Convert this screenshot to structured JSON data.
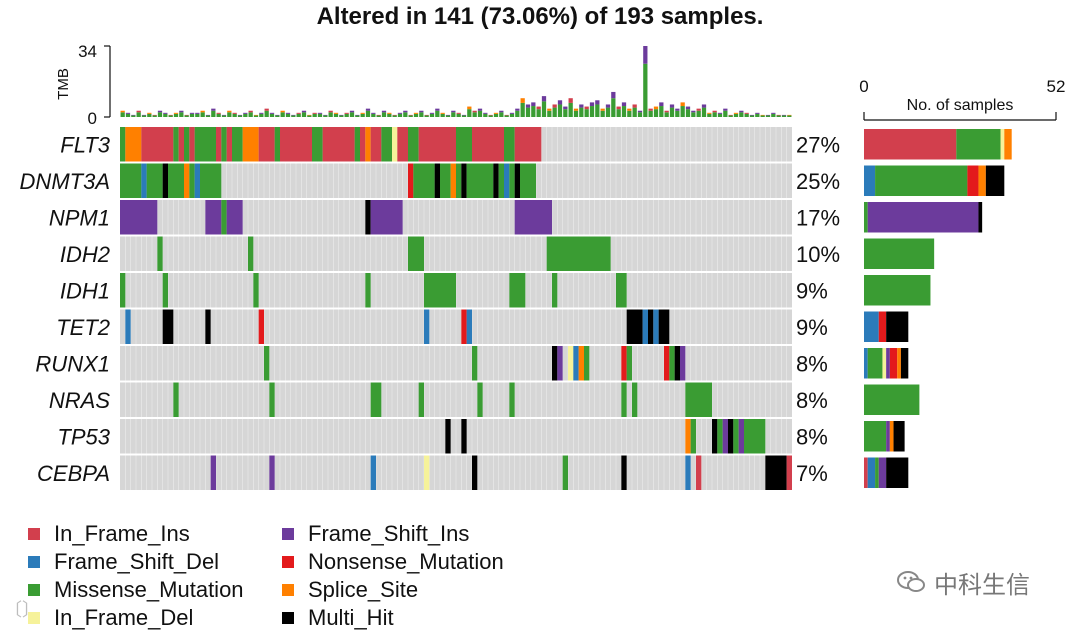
{
  "title": "Altered in 141 (73.06%) of 193 samples.",
  "tmb_axis": {
    "label": "TMB",
    "max": 34,
    "min": 0,
    "ticks": [
      "34",
      "0"
    ]
  },
  "right_axis": {
    "label": "No. of samples",
    "min": 0,
    "max": 52,
    "ticks": [
      "0",
      "52"
    ]
  },
  "colors": {
    "In_Frame_Ins": "#d23f4d",
    "Frame_Shift_Del": "#2b7bba",
    "Missense_Mutation": "#3a9c33",
    "In_Frame_Del": "#f6f29a",
    "Frame_Shift_Ins": "#6c3b9c",
    "Nonsense_Mutation": "#e31a1c",
    "Splice_Site": "#ff8000",
    "Multi_Hit": "#000000",
    "background": "#d6d6d6"
  },
  "legend": [
    {
      "key": "In_Frame_Ins",
      "label": "In_Frame_Ins"
    },
    {
      "key": "Frame_Shift_Del",
      "label": "Frame_Shift_Del"
    },
    {
      "key": "Missense_Mutation",
      "label": "Missense_Mutation"
    },
    {
      "key": "In_Frame_Del",
      "label": "In_Frame_Del"
    },
    {
      "key": "Frame_Shift_Ins",
      "label": "Frame_Shift_Ins"
    },
    {
      "key": "Nonsense_Mutation",
      "label": "Nonsense_Mutation"
    },
    {
      "key": "Splice_Site",
      "label": "Splice_Site"
    },
    {
      "key": "Multi_Hit",
      "label": "Multi_Hit"
    }
  ],
  "chart_data": {
    "type": "heatmap",
    "title": "Altered in 141 (73.06%) of 193 samples.",
    "samples_total": 193,
    "samples_altered": 141,
    "genes": [
      {
        "name": "FLT3",
        "percent": "27%",
        "counts": {
          "In_Frame_Ins": 25,
          "Missense_Mutation": 12,
          "In_Frame_Del": 1,
          "Splice_Site": 2
        },
        "blocks": [
          [
            0,
            1,
            "Missense_Mutation"
          ],
          [
            1,
            4,
            "Splice_Site"
          ],
          [
            4,
            10,
            "In_Frame_Ins"
          ],
          [
            10,
            11,
            "Missense_Mutation"
          ],
          [
            11,
            12,
            "In_Frame_Ins"
          ],
          [
            12,
            13,
            "Missense_Mutation"
          ],
          [
            13,
            14,
            "In_Frame_Ins"
          ],
          [
            14,
            18,
            "Missense_Mutation"
          ],
          [
            18,
            19,
            "In_Frame_Ins"
          ],
          [
            19,
            20,
            "Missense_Mutation"
          ],
          [
            20,
            21,
            "In_Frame_Ins"
          ],
          [
            21,
            23,
            "Missense_Mutation"
          ],
          [
            23,
            26,
            "Splice_Site"
          ],
          [
            26,
            29,
            "In_Frame_Ins"
          ],
          [
            29,
            30,
            "Missense_Mutation"
          ],
          [
            30,
            36,
            "In_Frame_Ins"
          ],
          [
            36,
            38,
            "Missense_Mutation"
          ],
          [
            38,
            44,
            "In_Frame_Ins"
          ],
          [
            44,
            45,
            "Missense_Mutation"
          ],
          [
            45,
            46,
            "In_Frame_Ins"
          ],
          [
            46,
            47,
            "Splice_Site"
          ],
          [
            47,
            49,
            "In_Frame_Ins"
          ],
          [
            49,
            51,
            "Missense_Mutation"
          ],
          [
            51,
            52,
            "In_Frame_Del"
          ],
          [
            52,
            54,
            "In_Frame_Ins"
          ],
          [
            54,
            56,
            "Missense_Mutation"
          ],
          [
            56,
            63,
            "In_Frame_Ins"
          ],
          [
            63,
            66,
            "Missense_Mutation"
          ],
          [
            66,
            72,
            "In_Frame_Ins"
          ],
          [
            72,
            74,
            "Missense_Mutation"
          ],
          [
            74,
            79,
            "In_Frame_Ins"
          ]
        ]
      },
      {
        "name": "DNMT3A",
        "percent": "25%",
        "counts": {
          "Frame_Shift_Del": 3,
          "Missense_Mutation": 25,
          "Nonsense_Mutation": 3,
          "Splice_Site": 2,
          "Multi_Hit": 5
        },
        "blocks": [
          [
            0,
            4,
            "Missense_Mutation"
          ],
          [
            4,
            5,
            "Frame_Shift_Del"
          ],
          [
            5,
            8,
            "Missense_Mutation"
          ],
          [
            8,
            9,
            "Multi_Hit"
          ],
          [
            9,
            12,
            "Missense_Mutation"
          ],
          [
            12,
            13,
            "Splice_Site"
          ],
          [
            13,
            14,
            "Missense_Mutation"
          ],
          [
            14,
            15,
            "Frame_Shift_Del"
          ],
          [
            15,
            19,
            "Missense_Mutation"
          ],
          [
            54,
            55,
            "Nonsense_Mutation"
          ],
          [
            55,
            59,
            "Missense_Mutation"
          ],
          [
            59,
            60,
            "Multi_Hit"
          ],
          [
            60,
            62,
            "Missense_Mutation"
          ],
          [
            62,
            63,
            "Splice_Site"
          ],
          [
            63,
            64,
            "Missense_Mutation"
          ],
          [
            64,
            65,
            "Multi_Hit"
          ],
          [
            65,
            70,
            "Missense_Mutation"
          ],
          [
            70,
            71,
            "Multi_Hit"
          ],
          [
            71,
            72,
            "Missense_Mutation"
          ],
          [
            72,
            73,
            "Frame_Shift_Del"
          ],
          [
            73,
            74,
            "Missense_Mutation"
          ],
          [
            74,
            75,
            "Multi_Hit"
          ],
          [
            75,
            78,
            "Missense_Mutation"
          ]
        ]
      },
      {
        "name": "NPM1",
        "percent": "17%",
        "counts": {
          "Missense_Mutation": 1,
          "Frame_Shift_Ins": 30,
          "Multi_Hit": 1
        },
        "blocks": [
          [
            0,
            7,
            "Frame_Shift_Ins"
          ],
          [
            16,
            19,
            "Frame_Shift_Ins"
          ],
          [
            19,
            20,
            "Missense_Mutation"
          ],
          [
            20,
            23,
            "Frame_Shift_Ins"
          ],
          [
            46,
            47,
            "Multi_Hit"
          ],
          [
            47,
            53,
            "Frame_Shift_Ins"
          ],
          [
            74,
            81,
            "Frame_Shift_Ins"
          ]
        ]
      },
      {
        "name": "IDH2",
        "percent": "10%",
        "counts": {
          "Missense_Mutation": 19
        },
        "blocks": [
          [
            7,
            8,
            "Missense_Mutation"
          ],
          [
            24,
            25,
            "Missense_Mutation"
          ],
          [
            54,
            57,
            "Missense_Mutation"
          ],
          [
            80,
            92,
            "Missense_Mutation"
          ]
        ]
      },
      {
        "name": "IDH1",
        "percent": "9%",
        "counts": {
          "Missense_Mutation": 18
        },
        "blocks": [
          [
            0,
            1,
            "Missense_Mutation"
          ],
          [
            8,
            9,
            "Missense_Mutation"
          ],
          [
            25,
            26,
            "Missense_Mutation"
          ],
          [
            46,
            47,
            "Missense_Mutation"
          ],
          [
            57,
            63,
            "Missense_Mutation"
          ],
          [
            73,
            76,
            "Missense_Mutation"
          ],
          [
            81,
            82,
            "Missense_Mutation"
          ],
          [
            93,
            95,
            "Missense_Mutation"
          ]
        ]
      },
      {
        "name": "TET2",
        "percent": "9%",
        "counts": {
          "Frame_Shift_Del": 4,
          "Nonsense_Mutation": 2,
          "Multi_Hit": 6
        },
        "blocks": [
          [
            1,
            2,
            "Frame_Shift_Del"
          ],
          [
            8,
            10,
            "Multi_Hit"
          ],
          [
            16,
            17,
            "Multi_Hit"
          ],
          [
            26,
            27,
            "Nonsense_Mutation"
          ],
          [
            57,
            58,
            "Frame_Shift_Del"
          ],
          [
            64,
            65,
            "Nonsense_Mutation"
          ],
          [
            65,
            66,
            "Frame_Shift_Del"
          ],
          [
            95,
            98,
            "Multi_Hit"
          ],
          [
            98,
            99,
            "Frame_Shift_Del"
          ],
          [
            99,
            100,
            "Multi_Hit"
          ],
          [
            100,
            101,
            "Frame_Shift_Del"
          ],
          [
            101,
            103,
            "Multi_Hit"
          ]
        ]
      },
      {
        "name": "RUNX1",
        "percent": "8%",
        "counts": {
          "Frame_Shift_Del": 1,
          "Missense_Mutation": 4,
          "In_Frame_Del": 1,
          "Frame_Shift_Ins": 1,
          "Nonsense_Mutation": 2,
          "Splice_Site": 1,
          "Multi_Hit": 2
        },
        "blocks": [
          [
            27,
            28,
            "Missense_Mutation"
          ],
          [
            66,
            67,
            "Missense_Mutation"
          ],
          [
            81,
            82,
            "Multi_Hit"
          ],
          [
            82,
            83,
            "Frame_Shift_Ins"
          ],
          [
            84,
            85,
            "In_Frame_Del"
          ],
          [
            85,
            86,
            "Frame_Shift_Del"
          ],
          [
            86,
            87,
            "Splice_Site"
          ],
          [
            87,
            88,
            "Missense_Mutation"
          ],
          [
            94,
            95,
            "Nonsense_Mutation"
          ],
          [
            95,
            96,
            "Missense_Mutation"
          ],
          [
            102,
            103,
            "Nonsense_Mutation"
          ],
          [
            103,
            104,
            "Missense_Mutation"
          ],
          [
            104,
            105,
            "Multi_Hit"
          ],
          [
            105,
            106,
            "Frame_Shift_Ins"
          ]
        ]
      },
      {
        "name": "NRAS",
        "percent": "8%",
        "counts": {
          "Missense_Mutation": 15
        },
        "blocks": [
          [
            10,
            11,
            "Missense_Mutation"
          ],
          [
            28,
            29,
            "Missense_Mutation"
          ],
          [
            47,
            49,
            "Missense_Mutation"
          ],
          [
            56,
            57,
            "Missense_Mutation"
          ],
          [
            67,
            68,
            "Missense_Mutation"
          ],
          [
            73,
            74,
            "Missense_Mutation"
          ],
          [
            94,
            95,
            "Missense_Mutation"
          ],
          [
            96,
            97,
            "Missense_Mutation"
          ],
          [
            106,
            111,
            "Missense_Mutation"
          ]
        ]
      },
      {
        "name": "TP53",
        "percent": "8%",
        "counts": {
          "Missense_Mutation": 6,
          "Frame_Shift_Ins": 1,
          "Splice_Site": 1,
          "Multi_Hit": 3
        },
        "blocks": [
          [
            61,
            62,
            "Multi_Hit"
          ],
          [
            64,
            65,
            "Multi_Hit"
          ],
          [
            106,
            107,
            "Splice_Site"
          ],
          [
            107,
            108,
            "Missense_Mutation"
          ],
          [
            111,
            112,
            "Multi_Hit"
          ],
          [
            112,
            113,
            "Missense_Mutation"
          ],
          [
            113,
            114,
            "Frame_Shift_Ins"
          ],
          [
            114,
            115,
            "Multi_Hit"
          ],
          [
            115,
            116,
            "Missense_Mutation"
          ],
          [
            116,
            117,
            "Frame_Shift_Ins"
          ],
          [
            117,
            121,
            "Missense_Mutation"
          ]
        ]
      },
      {
        "name": "CEBPA",
        "percent": "7%",
        "counts": {
          "In_Frame_Ins": 1,
          "Frame_Shift_Del": 2,
          "Missense_Mutation": 1,
          "Frame_Shift_Ins": 2,
          "Multi_Hit": 6
        },
        "blocks": [
          [
            17,
            18,
            "Frame_Shift_Ins"
          ],
          [
            28,
            29,
            "Frame_Shift_Ins"
          ],
          [
            47,
            48,
            "Frame_Shift_Del"
          ],
          [
            57,
            58,
            "In_Frame_Del"
          ],
          [
            66,
            67,
            "Multi_Hit"
          ],
          [
            83,
            84,
            "Missense_Mutation"
          ],
          [
            94,
            95,
            "Multi_Hit"
          ],
          [
            106,
            107,
            "Frame_Shift_Del"
          ],
          [
            108,
            109,
            "In_Frame_Ins"
          ],
          [
            121,
            125,
            "Multi_Hit"
          ],
          [
            125,
            126,
            "In_Frame_Ins"
          ]
        ]
      }
    ],
    "tmb": [
      3,
      2,
      1,
      3,
      1,
      2,
      1,
      3,
      2,
      1,
      2,
      3,
      1,
      2,
      2,
      3,
      1,
      4,
      2,
      1,
      3,
      2,
      1,
      2,
      3,
      1,
      2,
      4,
      2,
      1,
      3,
      2,
      1,
      2,
      3,
      1,
      2,
      2,
      1,
      3,
      2,
      1,
      2,
      3,
      1,
      2,
      4,
      2,
      1,
      3,
      2,
      1,
      2,
      3,
      1,
      2,
      3,
      1,
      2,
      4,
      2,
      1,
      3,
      2,
      1,
      5,
      3,
      4,
      2,
      1,
      2,
      3,
      1,
      2,
      4,
      9,
      6,
      7,
      5,
      10,
      4,
      6,
      8,
      5,
      9,
      4,
      6,
      5,
      7,
      8,
      4,
      6,
      12,
      5,
      7,
      4,
      6,
      3,
      34,
      4,
      5,
      7,
      3,
      6,
      4,
      7,
      5,
      3,
      4,
      6,
      2,
      3,
      2,
      4,
      1,
      2,
      3,
      2,
      1,
      2,
      1,
      1,
      2,
      1,
      1,
      1
    ],
    "columns": 126
  }
}
